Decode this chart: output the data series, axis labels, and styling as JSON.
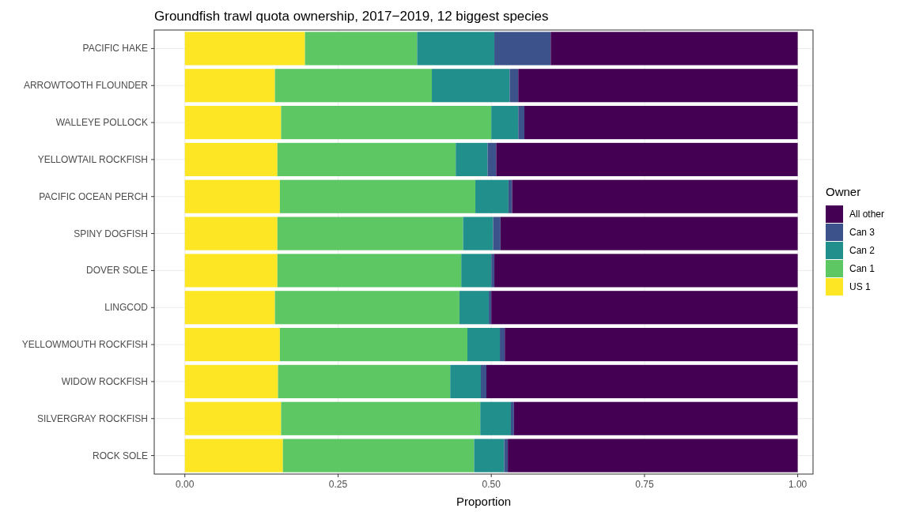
{
  "chart_data": {
    "type": "bar",
    "orientation": "horizontal",
    "stacked": true,
    "title": "Groundfish trawl quota ownership, 2017−2019, 12 biggest species",
    "xlabel": "Proportion",
    "legend_title": "Owner",
    "legend": "right",
    "grid": true,
    "categories": [
      "PACIFIC HAKE",
      "ARROWTOOTH FLOUNDER",
      "WALLEYE POLLOCK",
      "YELLOWTAIL ROCKFISH",
      "PACIFIC OCEAN PERCH",
      "SPINY DOGFISH",
      "DOVER SOLE",
      "LINGCOD",
      "YELLOWMOUTH ROCKFISH",
      "WIDOW ROCKFISH",
      "SILVERGRAY ROCKFISH",
      "ROCK SOLE"
    ],
    "xlim": [
      -0.05,
      1.025
    ],
    "xticks": [
      {
        "value": 0,
        "label": "0.00"
      },
      {
        "value": 0.25,
        "label": "0.25"
      },
      {
        "value": 0.5,
        "label": "0.50"
      },
      {
        "value": 0.75,
        "label": "0.75"
      },
      {
        "value": 1,
        "label": "1.00"
      }
    ],
    "series": [
      {
        "name": "US 1",
        "color": "#fde725",
        "values": [
          0.196,
          0.147,
          0.157,
          0.151,
          0.155,
          0.151,
          0.151,
          0.147,
          0.155,
          0.152,
          0.157,
          0.16
        ]
      },
      {
        "name": "Can 1",
        "color": "#5dc863",
        "values": [
          0.183,
          0.256,
          0.343,
          0.291,
          0.319,
          0.303,
          0.3,
          0.301,
          0.306,
          0.281,
          0.325,
          0.312
        ]
      },
      {
        "name": "Can 2",
        "color": "#21908c",
        "values": [
          0.126,
          0.127,
          0.044,
          0.052,
          0.054,
          0.049,
          0.049,
          0.048,
          0.053,
          0.05,
          0.05,
          0.049
        ]
      },
      {
        "name": "Can 3",
        "color": "#3b528b",
        "values": [
          0.092,
          0.014,
          0.01,
          0.014,
          0.006,
          0.012,
          0.005,
          0.004,
          0.008,
          0.009,
          0.005,
          0.006
        ]
      },
      {
        "name": "All other",
        "color": "#440154",
        "values": [
          0.403,
          0.456,
          0.446,
          0.492,
          0.466,
          0.485,
          0.495,
          0.5,
          0.478,
          0.508,
          0.463,
          0.473
        ]
      }
    ]
  }
}
